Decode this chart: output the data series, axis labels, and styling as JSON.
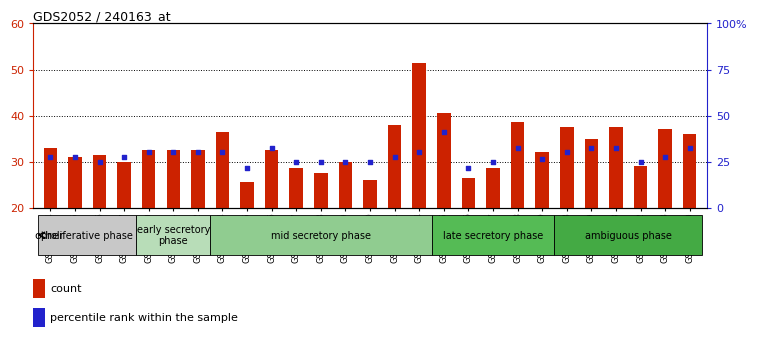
{
  "title": "GDS2052 / 240163_at",
  "samples": [
    "GSM109814",
    "GSM109815",
    "GSM109816",
    "GSM109817",
    "GSM109820",
    "GSM109821",
    "GSM109822",
    "GSM109824",
    "GSM109825",
    "GSM109826",
    "GSM109827",
    "GSM109828",
    "GSM109829",
    "GSM109830",
    "GSM109831",
    "GSM109834",
    "GSM109835",
    "GSM109836",
    "GSM109837",
    "GSM109838",
    "GSM109839",
    "GSM109818",
    "GSM109819",
    "GSM109823",
    "GSM109832",
    "GSM109833",
    "GSM109840"
  ],
  "count_values": [
    33,
    31,
    31.5,
    30,
    32.5,
    32.5,
    32.5,
    36.5,
    25.5,
    32.5,
    28.5,
    27.5,
    30,
    26,
    38,
    51.5,
    40.5,
    26.5,
    28.5,
    38.5,
    32,
    37.5,
    35,
    37.5,
    29,
    37,
    36
  ],
  "percentile_values": [
    31,
    31,
    30,
    31,
    32,
    32,
    32,
    32,
    28.5,
    33,
    30,
    30,
    30,
    30,
    31,
    32,
    36.5,
    28.5,
    30,
    33,
    30.5,
    32,
    33,
    33,
    30,
    31,
    33
  ],
  "ylim_left": [
    20,
    60
  ],
  "ylim_right": [
    0,
    100
  ],
  "yticks_left": [
    20,
    30,
    40,
    50,
    60
  ],
  "yticks_right": [
    0,
    25,
    50,
    75,
    100
  ],
  "phases": [
    {
      "label": "proliferative phase",
      "start": 0,
      "end": 4,
      "color": "#c8c8c8"
    },
    {
      "label": "early secretory\nphase",
      "start": 4,
      "end": 7,
      "color": "#b8ddb8"
    },
    {
      "label": "mid secretory phase",
      "start": 7,
      "end": 16,
      "color": "#90cc90"
    },
    {
      "label": "late secretory phase",
      "start": 16,
      "end": 21,
      "color": "#55bb55"
    },
    {
      "label": "ambiguous phase",
      "start": 21,
      "end": 27,
      "color": "#44aa44"
    }
  ],
  "bar_color": "#cc2200",
  "dot_color": "#2222cc",
  "left_axis_color": "#cc2200",
  "right_axis_color": "#2222cc",
  "bar_width": 0.55,
  "dot_size": 10
}
